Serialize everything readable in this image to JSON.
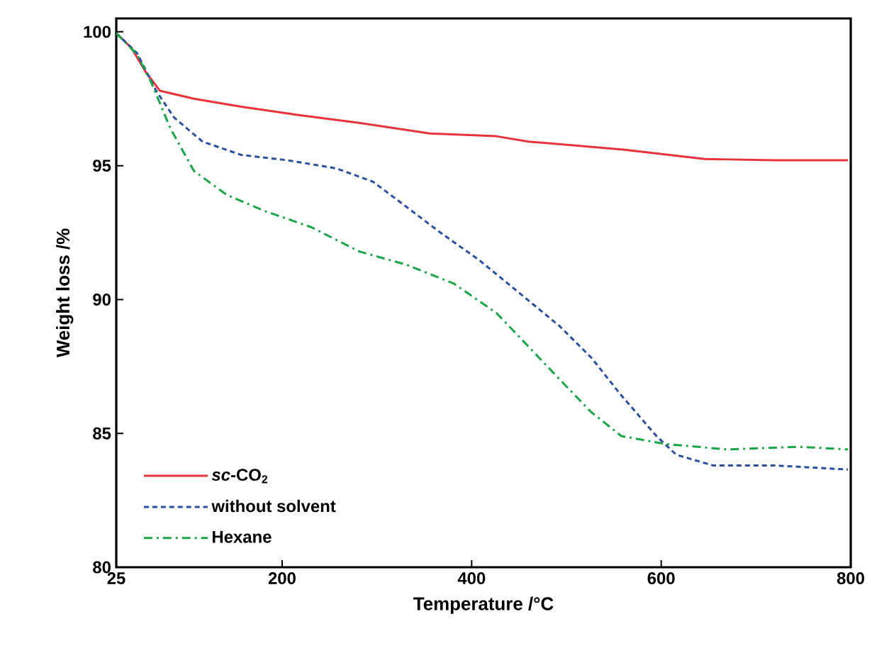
{
  "chart_data": {
    "type": "line",
    "xlabel": "Temperature /°C",
    "ylabel": "Weight loss /%",
    "xlim": [
      25,
      800
    ],
    "xticks": [
      25,
      200,
      400,
      600,
      800
    ],
    "ylim": [
      80,
      100.5
    ],
    "yticks": [
      80,
      85,
      90,
      95,
      100
    ],
    "legend": "bottom left",
    "grid": false,
    "series": [
      {
        "name": "*sc*-CO$_{2}$",
        "color": "#e8333a",
        "line_style": "solid",
        "x": [
          25,
          41,
          56,
          71,
          107,
          157,
          216,
          281,
          356,
          426,
          460,
          560,
          646,
          720,
          797
        ],
        "values": [
          99.95,
          99.4,
          98.5,
          97.8,
          97.5,
          97.2,
          96.9,
          96.6,
          96.2,
          96.1,
          95.9,
          95.6,
          95.25,
          95.2,
          95.2
        ]
      },
      {
        "name": "without solvent",
        "color": "#2a4fa0",
        "line_style": "dashed",
        "x": [
          25,
          47,
          67,
          86,
          116,
          157,
          206,
          257,
          296,
          326,
          367,
          407,
          445,
          493,
          527,
          556,
          595,
          616,
          655,
          721,
          797
        ],
        "values": [
          99.95,
          99.2,
          97.8,
          96.8,
          95.9,
          95.4,
          95.2,
          94.9,
          94.4,
          93.6,
          92.5,
          91.5,
          90.4,
          89.0,
          87.8,
          86.5,
          84.9,
          84.2,
          83.8,
          83.8,
          83.65
        ]
      },
      {
        "name": "Hexane",
        "color": "#1aa548",
        "line_style": "dashdot",
        "x": [
          25,
          47,
          62,
          82,
          107,
          142,
          182,
          231,
          281,
          331,
          381,
          426,
          445,
          496,
          526,
          558,
          605,
          670,
          745,
          797
        ],
        "values": [
          99.95,
          99.15,
          98.1,
          96.4,
          94.8,
          93.9,
          93.3,
          92.7,
          91.8,
          91.3,
          90.6,
          89.5,
          88.8,
          86.9,
          85.8,
          84.9,
          84.6,
          84.4,
          84.5,
          84.4
        ]
      }
    ]
  }
}
